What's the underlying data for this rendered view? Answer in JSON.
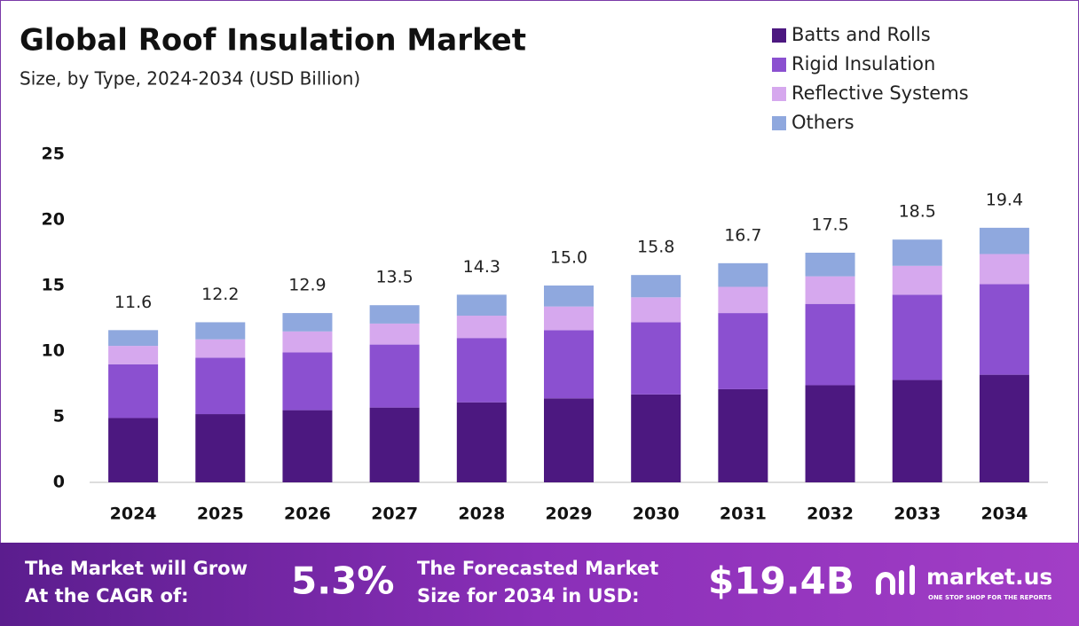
{
  "chart_data": {
    "type": "stacked_bar",
    "title": "Global Roof Insulation Market",
    "subtitle": "Size, by Type, 2024-2034 (USD Billion)",
    "categories": [
      "2024",
      "2025",
      "2026",
      "2027",
      "2028",
      "2029",
      "2030",
      "2031",
      "2032",
      "2033",
      "2034"
    ],
    "series": [
      {
        "name": "Batts and Rolls",
        "color": "#4c1880",
        "values": [
          4.9,
          5.2,
          5.5,
          5.7,
          6.1,
          6.4,
          6.7,
          7.1,
          7.4,
          7.8,
          8.2
        ]
      },
      {
        "name": "Rigid Insulation",
        "color": "#8b50d0",
        "values": [
          4.1,
          4.3,
          4.4,
          4.8,
          4.9,
          5.2,
          5.5,
          5.8,
          6.2,
          6.5,
          6.9
        ]
      },
      {
        "name": "Reflective Systems",
        "color": "#d6a8ee",
        "values": [
          1.4,
          1.4,
          1.6,
          1.6,
          1.7,
          1.8,
          1.9,
          2.0,
          2.1,
          2.2,
          2.3
        ]
      },
      {
        "name": "Others",
        "color": "#8fa8de",
        "values": [
          1.2,
          1.3,
          1.4,
          1.4,
          1.6,
          1.6,
          1.7,
          1.8,
          1.8,
          2.0,
          2.0
        ]
      }
    ],
    "totals": {
      "values": [
        11.6,
        12.2,
        12.9,
        13.5,
        14.3,
        15.0,
        15.8,
        16.7,
        17.5,
        18.5,
        19.4
      ],
      "value_labels": [
        "11.6",
        "12.2",
        "12.9",
        "13.5",
        "14.3",
        "15.0",
        "15.8",
        "16.7",
        "17.5",
        "18.5",
        "19.4"
      ]
    },
    "ylim": [
      0,
      25
    ],
    "yticks": [
      0,
      5,
      10,
      15,
      20,
      25
    ],
    "grid": false,
    "legend": "top-right"
  },
  "footer": {
    "cagr_text": [
      "The Market will Grow",
      "At the CAGR of:"
    ],
    "cagr_value": "5.3%",
    "forecast_text": [
      "The Forecasted Market",
      "Size for 2034 in USD:"
    ],
    "forecast_value": "$19.4B",
    "brand": "market.us",
    "tagline": "ONE STOP SHOP FOR THE REPORTS"
  }
}
